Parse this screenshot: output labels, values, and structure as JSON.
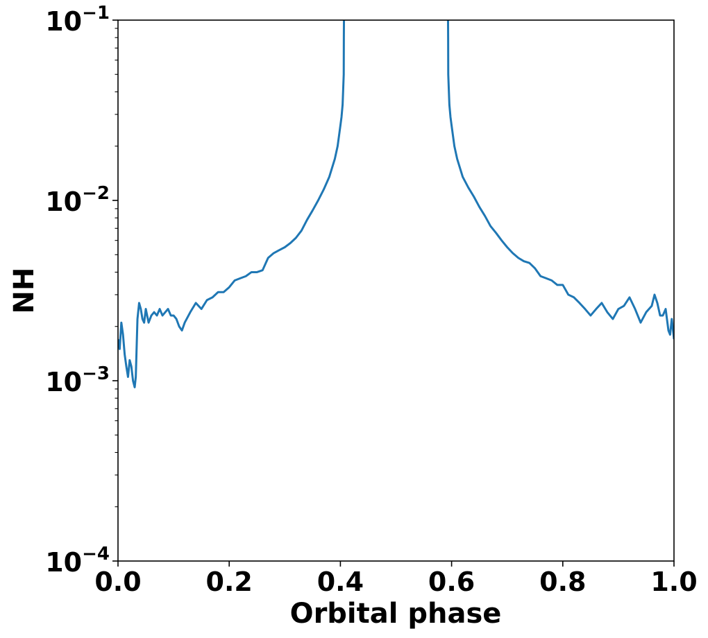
{
  "chart_data": {
    "type": "line",
    "xlabel": "Orbital phase",
    "ylabel": "NH",
    "xlim": [
      0.0,
      1.0
    ],
    "ylim": [
      0.0001,
      0.1
    ],
    "yscale": "log",
    "grid": false,
    "x_ticks": [
      "0.0",
      "0.2",
      "0.4",
      "0.6",
      "0.8",
      "1.0"
    ],
    "y_ticks": [
      {
        "value": 0.1,
        "base": "10",
        "exp": "−1"
      },
      {
        "value": 0.01,
        "base": "10",
        "exp": "−2"
      },
      {
        "value": 0.001,
        "base": "10",
        "exp": "−3"
      },
      {
        "value": 0.0001,
        "base": "10",
        "exp": "−4"
      }
    ],
    "series": [
      {
        "color": "#1f77b4",
        "segments": [
          {
            "x": [
              0.0,
              0.003,
              0.006,
              0.009,
              0.012,
              0.015,
              0.018,
              0.021,
              0.024,
              0.027,
              0.03,
              0.032,
              0.035,
              0.038,
              0.041,
              0.044,
              0.047,
              0.05,
              0.055,
              0.06,
              0.065,
              0.07,
              0.075,
              0.08,
              0.085,
              0.09,
              0.095,
              0.1,
              0.105,
              0.11,
              0.115,
              0.12,
              0.13,
              0.14,
              0.15,
              0.16,
              0.17,
              0.18,
              0.19,
              0.2,
              0.21,
              0.22,
              0.23,
              0.24,
              0.25,
              0.26,
              0.27,
              0.28,
              0.29,
              0.3,
              0.31,
              0.32,
              0.33,
              0.34,
              0.35,
              0.36,
              0.37,
              0.38,
              0.39,
              0.395,
              0.4,
              0.402,
              0.404,
              0.406,
              0.4062,
              0.4064
            ],
            "y": [
              0.0017,
              0.0015,
              0.0021,
              0.0018,
              0.0014,
              0.0012,
              0.00105,
              0.0013,
              0.0012,
              0.001,
              0.00092,
              0.00105,
              0.0022,
              0.0027,
              0.0025,
              0.0022,
              0.0021,
              0.0025,
              0.0021,
              0.0023,
              0.0024,
              0.0023,
              0.0025,
              0.0023,
              0.0024,
              0.0025,
              0.0023,
              0.0023,
              0.0022,
              0.002,
              0.0019,
              0.0021,
              0.0024,
              0.0027,
              0.0025,
              0.0028,
              0.0029,
              0.0031,
              0.0031,
              0.0033,
              0.0036,
              0.0037,
              0.0038,
              0.004,
              0.004,
              0.0041,
              0.0048,
              0.0051,
              0.0053,
              0.0055,
              0.0058,
              0.0062,
              0.0068,
              0.0078,
              0.0088,
              0.01,
              0.0115,
              0.0135,
              0.017,
              0.02,
              0.026,
              0.029,
              0.034,
              0.05,
              0.08,
              0.1
            ]
          },
          {
            "x": [
              0.5936,
              0.5938,
              0.594,
              0.596,
              0.598,
              0.6,
              0.605,
              0.61,
              0.62,
              0.63,
              0.64,
              0.65,
              0.66,
              0.67,
              0.68,
              0.69,
              0.7,
              0.71,
              0.72,
              0.73,
              0.74,
              0.75,
              0.76,
              0.77,
              0.78,
              0.79,
              0.8,
              0.81,
              0.82,
              0.83,
              0.84,
              0.85,
              0.86,
              0.87,
              0.88,
              0.89,
              0.9,
              0.91,
              0.92,
              0.93,
              0.94,
              0.95,
              0.96,
              0.965,
              0.97,
              0.975,
              0.98,
              0.985,
              0.99,
              0.993,
              0.996,
              1.0
            ],
            "y": [
              0.1,
              0.08,
              0.05,
              0.034,
              0.029,
              0.026,
              0.02,
              0.017,
              0.0135,
              0.0118,
              0.0105,
              0.0092,
              0.0082,
              0.0072,
              0.0066,
              0.006,
              0.0055,
              0.0051,
              0.0048,
              0.0046,
              0.0045,
              0.0042,
              0.0038,
              0.0037,
              0.0036,
              0.0034,
              0.0034,
              0.003,
              0.0029,
              0.0027,
              0.0025,
              0.0023,
              0.0025,
              0.0027,
              0.0024,
              0.0022,
              0.0025,
              0.0026,
              0.0029,
              0.0025,
              0.0021,
              0.0024,
              0.0026,
              0.003,
              0.0027,
              0.0023,
              0.0023,
              0.0025,
              0.0019,
              0.0018,
              0.0022,
              0.0017
            ]
          }
        ]
      }
    ]
  }
}
